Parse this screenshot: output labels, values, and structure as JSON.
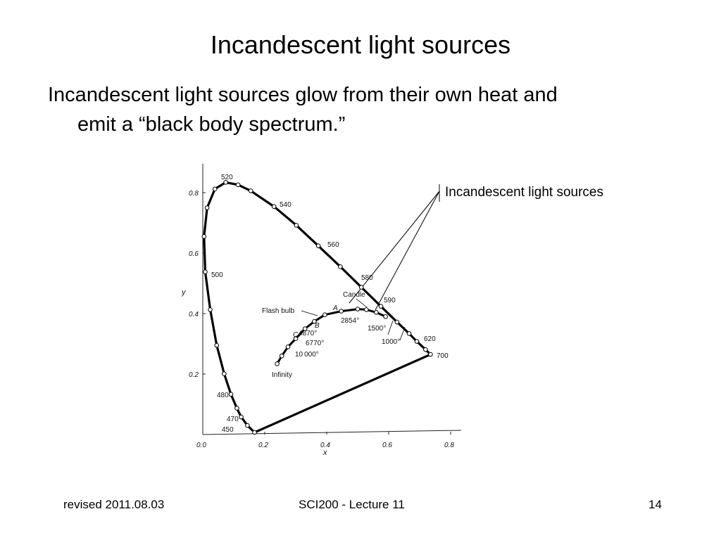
{
  "slide": {
    "title": "Incandescent light sources",
    "bullet_line1": "Incandescent light sources glow from their own heat and",
    "bullet_line2": "emit a “black body spectrum.”",
    "callout": "Incandescent light sources"
  },
  "footer": {
    "left": "revised 2011.08.03",
    "center": "SCI200 - Lecture 11",
    "right": "14"
  },
  "diagram": {
    "x_axis_label": "x",
    "y_axis_label": "y",
    "x_ticks": [
      {
        "value": 0.0,
        "label": "0.0"
      },
      {
        "value": 0.2,
        "label": "0.2"
      },
      {
        "value": 0.4,
        "label": "0.4"
      },
      {
        "value": 0.6,
        "label": "0.6"
      },
      {
        "value": 0.8,
        "label": "0.8"
      }
    ],
    "y_ticks": [
      {
        "value": 0.2,
        "label": "0.2"
      },
      {
        "value": 0.4,
        "label": "0.4"
      },
      {
        "value": 0.6,
        "label": "0.6"
      },
      {
        "value": 0.8,
        "label": "0.8"
      }
    ],
    "spectral_locus": [
      {
        "wl": 450,
        "x": 0.167,
        "y": 0.007
      },
      {
        "wl": 460,
        "x": 0.144,
        "y": 0.03
      },
      {
        "wl": 470,
        "x": 0.124,
        "y": 0.058
      },
      {
        "wl": 475,
        "x": 0.11,
        "y": 0.087
      },
      {
        "wl": 480,
        "x": 0.091,
        "y": 0.133
      },
      {
        "wl": 485,
        "x": 0.069,
        "y": 0.201
      },
      {
        "wl": 490,
        "x": 0.045,
        "y": 0.295
      },
      {
        "wl": 495,
        "x": 0.024,
        "y": 0.413
      },
      {
        "wl": 500,
        "x": 0.008,
        "y": 0.538
      },
      {
        "wl": 505,
        "x": 0.004,
        "y": 0.655
      },
      {
        "wl": 510,
        "x": 0.014,
        "y": 0.75
      },
      {
        "wl": 515,
        "x": 0.039,
        "y": 0.812
      },
      {
        "wl": 520,
        "x": 0.074,
        "y": 0.834
      },
      {
        "wl": 525,
        "x": 0.114,
        "y": 0.826
      },
      {
        "wl": 530,
        "x": 0.155,
        "y": 0.806
      },
      {
        "wl": 540,
        "x": 0.23,
        "y": 0.754
      },
      {
        "wl": 550,
        "x": 0.302,
        "y": 0.692
      },
      {
        "wl": 560,
        "x": 0.373,
        "y": 0.624
      },
      {
        "wl": 570,
        "x": 0.444,
        "y": 0.555
      },
      {
        "wl": 580,
        "x": 0.512,
        "y": 0.487
      },
      {
        "wl": 590,
        "x": 0.575,
        "y": 0.424
      },
      {
        "wl": 600,
        "x": 0.627,
        "y": 0.372
      },
      {
        "wl": 610,
        "x": 0.666,
        "y": 0.334
      },
      {
        "wl": 620,
        "x": 0.691,
        "y": 0.308
      },
      {
        "wl": 640,
        "x": 0.719,
        "y": 0.281
      },
      {
        "wl": 700,
        "x": 0.735,
        "y": 0.265
      }
    ],
    "wavelength_labels": [
      {
        "wl": 450,
        "text": "450"
      },
      {
        "wl": 470,
        "text": "470"
      },
      {
        "wl": 480,
        "text": "480"
      },
      {
        "wl": 500,
        "text": "500"
      },
      {
        "wl": 520,
        "text": "520"
      },
      {
        "wl": 540,
        "text": "540"
      },
      {
        "wl": 560,
        "text": "560"
      },
      {
        "wl": 580,
        "text": "580"
      },
      {
        "wl": 590,
        "text": "590"
      },
      {
        "wl": 620,
        "text": "620"
      },
      {
        "wl": 700,
        "text": "700"
      }
    ],
    "planckian_locus": [
      {
        "x": 0.24,
        "y": 0.234
      },
      {
        "x": 0.255,
        "y": 0.26
      },
      {
        "x": 0.275,
        "y": 0.29
      },
      {
        "x": 0.3,
        "y": 0.317
      },
      {
        "x": 0.33,
        "y": 0.35
      },
      {
        "x": 0.36,
        "y": 0.374
      },
      {
        "x": 0.394,
        "y": 0.396
      },
      {
        "x": 0.447,
        "y": 0.408
      },
      {
        "x": 0.5,
        "y": 0.415
      },
      {
        "x": 0.528,
        "y": 0.413
      },
      {
        "x": 0.56,
        "y": 0.404
      },
      {
        "x": 0.59,
        "y": 0.39
      }
    ],
    "point_labels": [
      {
        "text": "Flash bulb"
      },
      {
        "text": "Candle"
      },
      {
        "text": "A"
      },
      {
        "text": "B"
      },
      {
        "text": "C"
      },
      {
        "text": "2854°"
      },
      {
        "text": "4870°"
      },
      {
        "text": "6770°"
      },
      {
        "text": "10 000°"
      },
      {
        "text": "1500°"
      },
      {
        "text": "1000°"
      },
      {
        "text": "Infinity"
      }
    ]
  }
}
